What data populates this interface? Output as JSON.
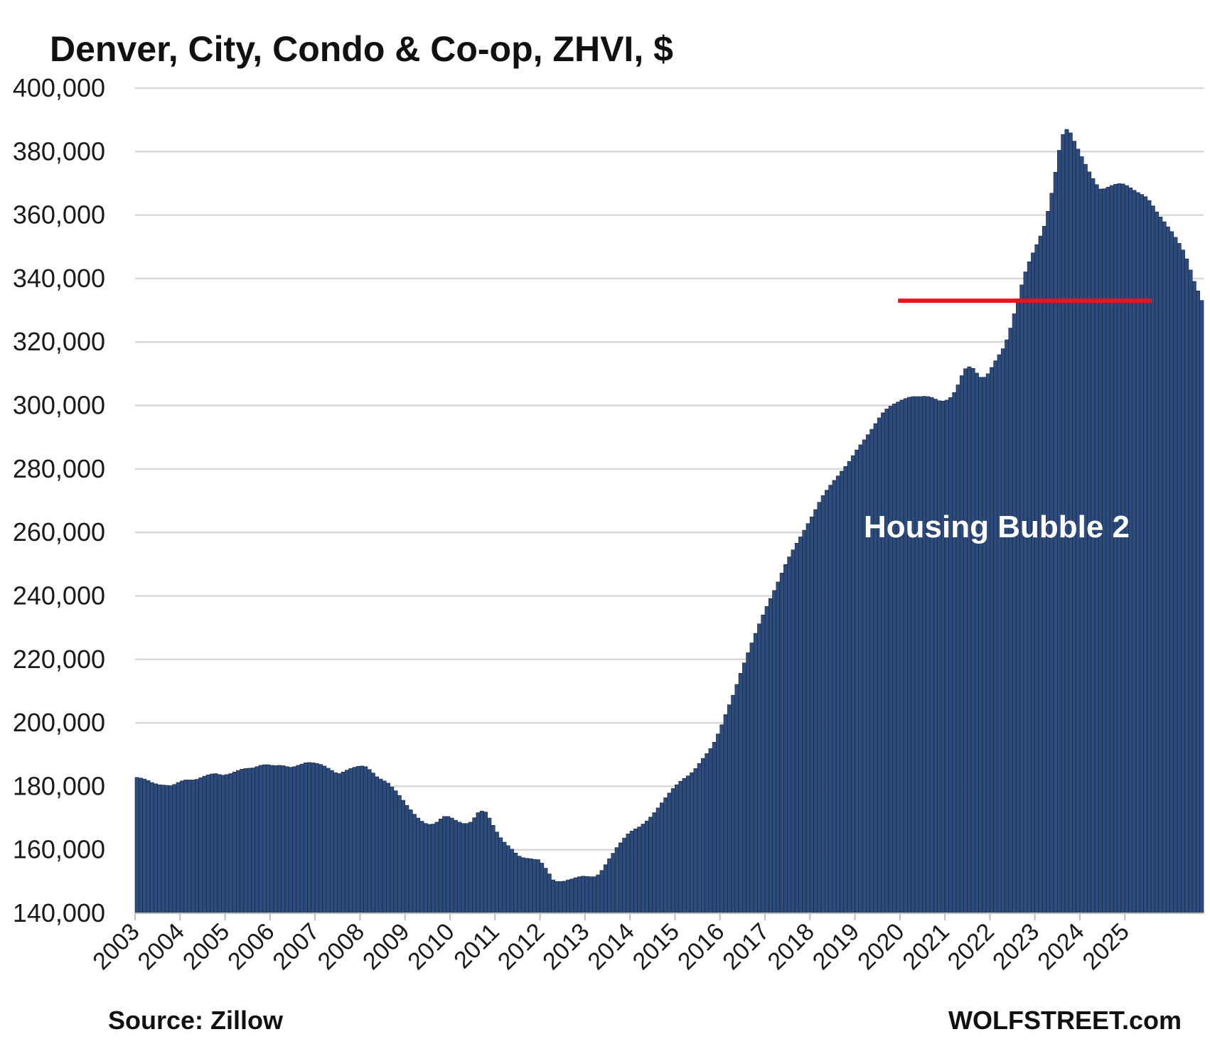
{
  "chart_data": {
    "type": "bar",
    "title": "Denver, City, Condo & Co-op, ZHVI, $",
    "source": "Source: Zillow",
    "watermark": "WOLFSTREET.com",
    "annotation": "Housing Bubble 2",
    "xlabel": "",
    "ylabel": "",
    "ylim": [
      140000,
      400000
    ],
    "yticks": [
      140000,
      160000,
      180000,
      200000,
      220000,
      240000,
      260000,
      280000,
      300000,
      320000,
      340000,
      360000,
      380000,
      400000
    ],
    "ytick_labels": [
      "140,000",
      "160,000",
      "180,000",
      "200,000",
      "220,000",
      "240,000",
      "260,000",
      "280,000",
      "300,000",
      "320,000",
      "340,000",
      "360,000",
      "380,000",
      "400,000"
    ],
    "xtick_labels": [
      "2003",
      "2004",
      "2005",
      "2006",
      "2007",
      "2008",
      "2009",
      "2010",
      "2011",
      "2012",
      "2013",
      "2014",
      "2015",
      "2016",
      "2017",
      "2018",
      "2019",
      "2020",
      "2021",
      "2022",
      "2023",
      "2024",
      "2025"
    ],
    "x_start": "2003-01",
    "x_end": "2025-06",
    "grid": true,
    "reference_line": {
      "value": 333000,
      "from": "2019-12",
      "to": "2025-06",
      "color": "#e8141c"
    },
    "colors": {
      "bar": "#2d4b7c",
      "bar_edge": "#16233b",
      "grid": "#d9d9d9",
      "reference": "#e8141c"
    },
    "series": [
      {
        "frequency": "monthly",
        "values": [
          182800,
          182600,
          182300,
          181800,
          181200,
          180800,
          180500,
          180400,
          180300,
          180200,
          180600,
          181200,
          181700,
          182000,
          182000,
          182000,
          182200,
          182700,
          183200,
          183600,
          183900,
          184000,
          183700,
          183500,
          183700,
          184000,
          184500,
          185000,
          185400,
          185600,
          185700,
          185800,
          186200,
          186600,
          186800,
          186800,
          186600,
          186500,
          186600,
          186500,
          186200,
          186000,
          186200,
          186600,
          187000,
          187400,
          187500,
          187400,
          187200,
          186900,
          186400,
          185700,
          185000,
          184300,
          184000,
          184500,
          185100,
          185600,
          186000,
          186300,
          186400,
          186200,
          185300,
          184200,
          183000,
          182300,
          181700,
          181000,
          179800,
          178600,
          177100,
          175600,
          174000,
          172600,
          171200,
          170000,
          169000,
          168300,
          168000,
          168100,
          168700,
          169700,
          170500,
          170500,
          170000,
          169300,
          168700,
          168300,
          168300,
          168700,
          170100,
          171700,
          172200,
          171900,
          170000,
          167700,
          165600,
          163800,
          162400,
          161300,
          160200,
          159000,
          158000,
          157500,
          157300,
          157200,
          157000,
          156900,
          155800,
          154200,
          152400,
          150500,
          150000,
          150000,
          150100,
          150500,
          150800,
          151200,
          151500,
          151700,
          151600,
          151500,
          151500,
          152100,
          153500,
          155300,
          157200,
          158900,
          160700,
          162200,
          163700,
          165000,
          165900,
          166600,
          167200,
          168100,
          169100,
          170300,
          171700,
          173200,
          174800,
          176400,
          177900,
          179300,
          180500,
          181600,
          182500,
          183300,
          184300,
          185600,
          187200,
          188800,
          190300,
          191900,
          193900,
          196500,
          199400,
          202600,
          205700,
          208700,
          212100,
          215600,
          218900,
          222100,
          225200,
          228200,
          231200,
          234000,
          236700,
          239200,
          241700,
          244400,
          247200,
          249900,
          252300,
          254500,
          256600,
          258600,
          260700,
          262800,
          264900,
          267200,
          269500,
          271600,
          273300,
          274900,
          276400,
          277800,
          279300,
          280800,
          282400,
          284200,
          286000,
          287600,
          289200,
          290800,
          292500,
          294300,
          296100,
          297700,
          298900,
          299800,
          300500,
          301100,
          301700,
          302200,
          302600,
          302800,
          302800,
          302800,
          302900,
          302800,
          302500,
          302000,
          301500,
          301400,
          301700,
          302500,
          304100,
          306500,
          309400,
          311600,
          312200,
          311700,
          310200,
          308900,
          308900,
          310000,
          312000,
          314100,
          316000,
          317900,
          320700,
          324400,
          328900,
          333600,
          338000,
          342100,
          345300,
          348100,
          350700,
          353400,
          356500,
          361200,
          366900,
          373500,
          380400,
          385400,
          387000,
          385900,
          383300,
          380800,
          378400,
          376000,
          373600,
          371500,
          369600,
          368200,
          368300,
          368800,
          369300,
          369700,
          369900,
          369800,
          369300,
          368600,
          367800,
          367100,
          366500,
          365800,
          364600,
          362900,
          361000,
          359400,
          357900,
          356300,
          354800,
          353000,
          351100,
          349000,
          346200,
          342700,
          339100,
          336100,
          333100
        ]
      }
    ]
  }
}
